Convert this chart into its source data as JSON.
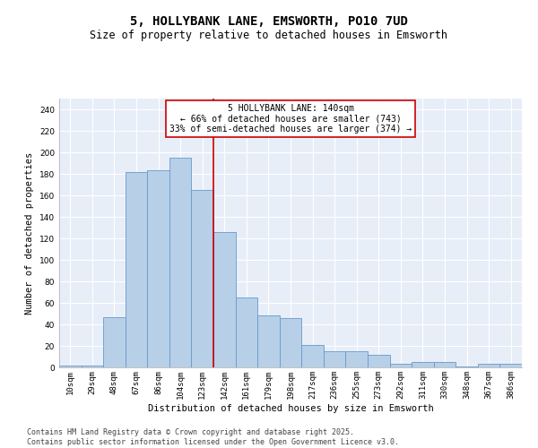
{
  "title": "5, HOLLYBANK LANE, EMSWORTH, PO10 7UD",
  "subtitle": "Size of property relative to detached houses in Emsworth",
  "xlabel": "Distribution of detached houses by size in Emsworth",
  "ylabel": "Number of detached properties",
  "categories": [
    "10sqm",
    "29sqm",
    "48sqm",
    "67sqm",
    "86sqm",
    "104sqm",
    "123sqm",
    "142sqm",
    "161sqm",
    "179sqm",
    "198sqm",
    "217sqm",
    "236sqm",
    "255sqm",
    "273sqm",
    "292sqm",
    "311sqm",
    "330sqm",
    "348sqm",
    "367sqm",
    "386sqm"
  ],
  "values": [
    2,
    2,
    47,
    182,
    183,
    195,
    165,
    126,
    65,
    48,
    46,
    21,
    15,
    15,
    12,
    3,
    5,
    5,
    1,
    3,
    3
  ],
  "bar_color": "#b8cfe8",
  "bar_edgecolor": "#6699cc",
  "highlight_line_index": 7,
  "annotation_text": "5 HOLLYBANK LANE: 140sqm\n← 66% of detached houses are smaller (743)\n33% of semi-detached houses are larger (374) →",
  "annotation_box_edgecolor": "#cc0000",
  "ylim": [
    0,
    250
  ],
  "yticks": [
    0,
    20,
    40,
    60,
    80,
    100,
    120,
    140,
    160,
    180,
    200,
    220,
    240
  ],
  "footer": "Contains HM Land Registry data © Crown copyright and database right 2025.\nContains public sector information licensed under the Open Government Licence v3.0.",
  "bg_color": "#e8eef8",
  "plot_bg_color": "#e8eef8",
  "title_fontsize": 10,
  "subtitle_fontsize": 8.5,
  "label_fontsize": 7.5,
  "tick_fontsize": 6.5,
  "annotation_fontsize": 7,
  "footer_fontsize": 6
}
